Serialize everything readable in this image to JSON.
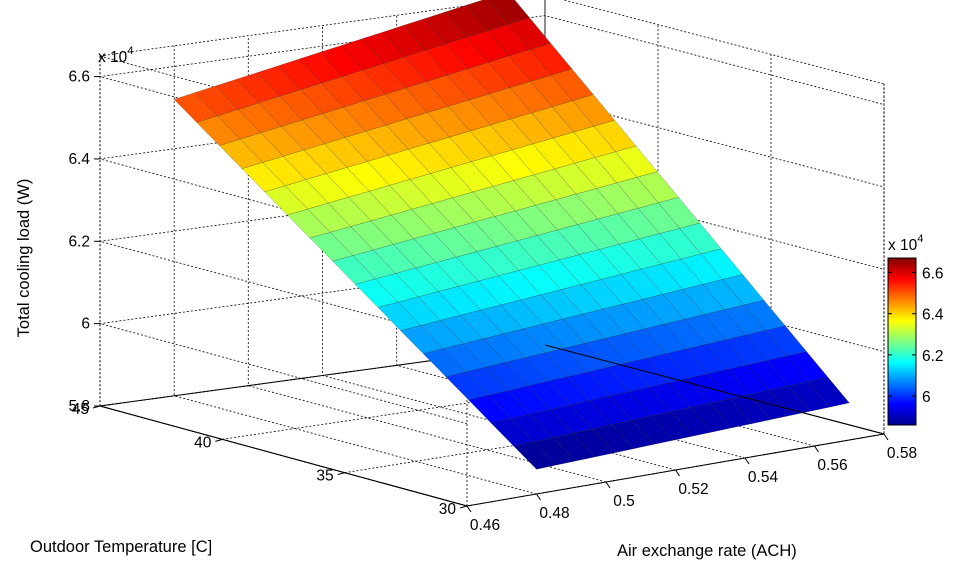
{
  "chart_data": {
    "type": "surface",
    "title": "",
    "xlabel": "Air exchange rate (ACH)",
    "ylabel": "Outdoor Temperature [C]",
    "zlabel": "Total cooling load (W)",
    "z_multiplier_label": "x 10",
    "z_multiplier_exponent": "4",
    "xlim": [
      0.46,
      0.58
    ],
    "ylim": [
      30,
      45
    ],
    "zlim": [
      58000,
      66500
    ],
    "x_ticks": [
      "0.46",
      "0.48",
      "0.5",
      "0.52",
      "0.54",
      "0.56",
      "0.58"
    ],
    "y_ticks": [
      "30",
      "35",
      "40",
      "45"
    ],
    "z_ticks": [
      "5.8",
      "6",
      "6.2",
      "6.4",
      "6.6"
    ],
    "x_range": [
      0.48,
      0.57
    ],
    "y_range": [
      30,
      45
    ],
    "corner_values": {
      "x_low_y_low": 58600,
      "x_high_y_low": 58900,
      "x_low_y_high": 65200,
      "x_high_y_high": 66700
    },
    "grid_size": [
      16,
      16
    ],
    "grid": "on",
    "colormap": "jet",
    "colorbar": {
      "ticks": [
        "6",
        "6.2",
        "6.4",
        "6.6"
      ],
      "multiplier_label": "x 10",
      "multiplier_exponent": "4",
      "range": [
        58600,
        66700
      ]
    }
  }
}
